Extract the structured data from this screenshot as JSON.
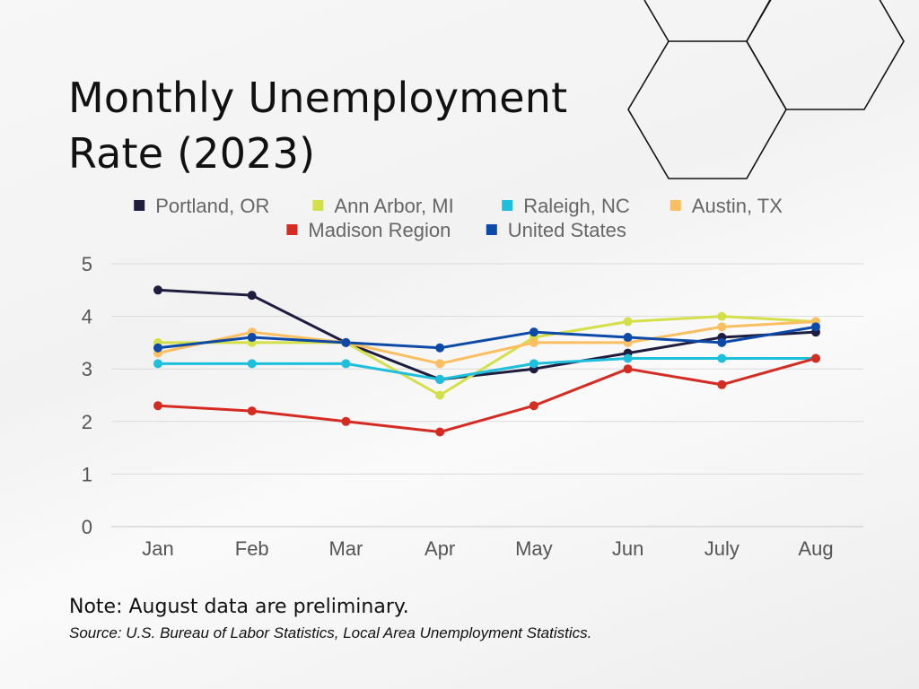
{
  "title_lines": [
    "Monthly Unemployment",
    "Rate (2023)"
  ],
  "note": "Note: August data are preliminary.",
  "source": "Source: U.S. Bureau of Labor Statistics, Local Area Unemployment Statistics.",
  "chart_data": {
    "type": "line",
    "title": "Monthly Unemployment Rate (2023)",
    "categories": [
      "Jan",
      "Feb",
      "Mar",
      "Apr",
      "May",
      "Jun",
      "July",
      "Aug"
    ],
    "ylim": [
      0,
      5
    ],
    "yticks": [
      0,
      1,
      2,
      3,
      4,
      5
    ],
    "grid": "horizontal",
    "legend_position": "top",
    "series": [
      {
        "name": "Portland, OR",
        "color": "#1e1d3f",
        "values": [
          4.5,
          4.4,
          3.5,
          2.8,
          3.0,
          3.3,
          3.6,
          3.7
        ]
      },
      {
        "name": "Ann Arbor, MI",
        "color": "#d4e04a",
        "values": [
          3.5,
          3.5,
          3.5,
          2.5,
          3.6,
          3.9,
          4.0,
          3.9
        ]
      },
      {
        "name": "Raleigh, NC",
        "color": "#1ebfdc",
        "values": [
          3.1,
          3.1,
          3.1,
          2.8,
          3.1,
          3.2,
          3.2,
          3.2
        ]
      },
      {
        "name": "Austin, TX",
        "color": "#fbbf62",
        "values": [
          3.3,
          3.7,
          3.5,
          3.1,
          3.5,
          3.5,
          3.8,
          3.9
        ]
      },
      {
        "name": "Madison Region",
        "color": "#d42b22",
        "values": [
          2.3,
          2.2,
          2.0,
          1.8,
          2.3,
          3.0,
          2.7,
          3.2
        ]
      },
      {
        "name": "United States",
        "color": "#0d4aa8",
        "values": [
          3.4,
          3.6,
          3.5,
          3.4,
          3.7,
          3.6,
          3.5,
          3.8
        ]
      }
    ]
  }
}
